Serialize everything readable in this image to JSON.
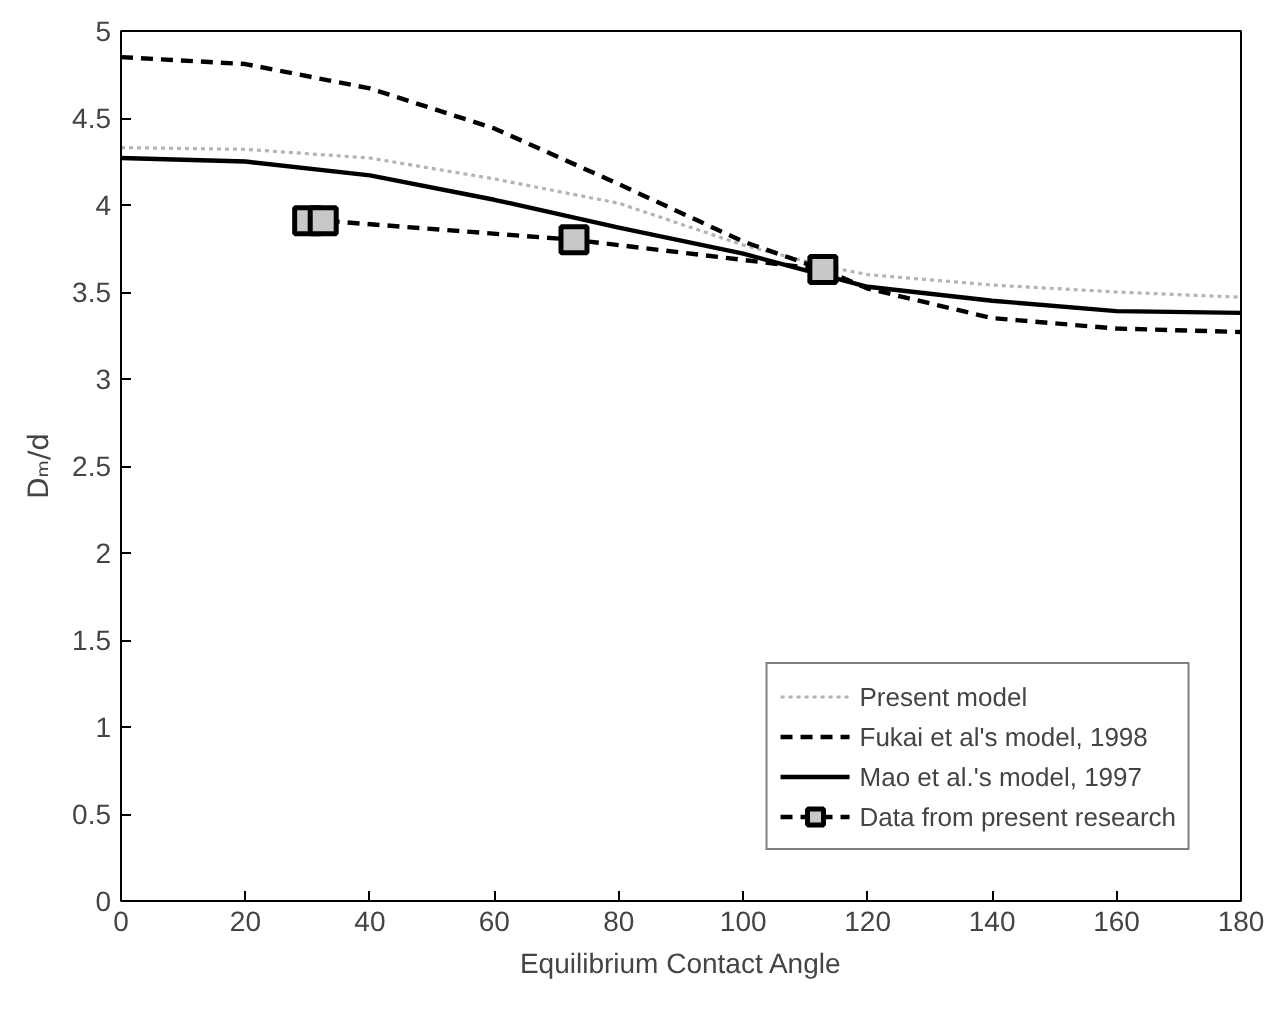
{
  "chart_data": {
    "type": "line",
    "xlabel": "Equilibrium Contact Angle",
    "ylabel": "Dₘ/d",
    "xlim": [
      0,
      180
    ],
    "ylim": [
      0,
      5
    ],
    "xticks": [
      0,
      20,
      40,
      60,
      80,
      100,
      120,
      140,
      160,
      180
    ],
    "yticks": [
      0,
      0.5,
      1,
      1.5,
      2,
      2.5,
      3,
      3.5,
      4,
      4.5,
      5
    ],
    "grid": false,
    "legend": "bottom right",
    "series": [
      {
        "name": "Present model",
        "color": "#b4b4b4",
        "line_style": "dotted",
        "marker": "none",
        "x": [
          0,
          20,
          40,
          60,
          80,
          100,
          112.8,
          120,
          140,
          160,
          180
        ],
        "values": [
          4.33,
          4.32,
          4.27,
          4.15,
          4.01,
          3.77,
          3.65,
          3.6,
          3.54,
          3.5,
          3.47
        ]
      },
      {
        "name": "Fukai et al's model, 1998",
        "color": "#000000",
        "line_style": "dashed",
        "marker": "none",
        "x": [
          0,
          20,
          40,
          60,
          80,
          100,
          112.8,
          120,
          140,
          160,
          180
        ],
        "values": [
          4.85,
          4.81,
          4.67,
          4.44,
          4.12,
          3.79,
          3.63,
          3.52,
          3.35,
          3.29,
          3.27
        ]
      },
      {
        "name": "Mao et al.'s model, 1997",
        "color": "#000000",
        "line_style": "solid",
        "marker": "none",
        "x": [
          0,
          20,
          40,
          60,
          80,
          100,
          120,
          140,
          160,
          180
        ],
        "values": [
          4.27,
          4.25,
          4.17,
          4.03,
          3.87,
          3.72,
          3.53,
          3.45,
          3.39,
          3.38
        ]
      },
      {
        "name": "Data from present research",
        "color": "#000000",
        "line_style": "dashed",
        "marker": "square",
        "x": [
          30,
          32.5,
          72.8,
          112.8
        ],
        "values": [
          3.91,
          3.91,
          3.8,
          3.63
        ]
      }
    ]
  }
}
